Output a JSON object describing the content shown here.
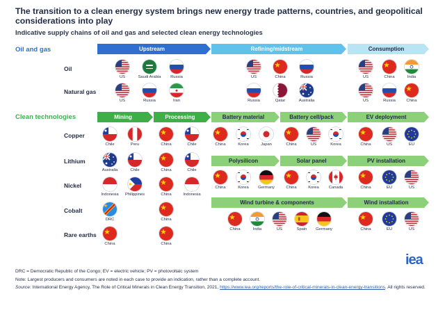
{
  "title": "The transition to a clean energy system brings new energy trade patterns, countries, and geopolitical considerations into play",
  "subtitle": "Indicative supply chains of oil and gas and selected clean energy technologies",
  "sections": {
    "oil_gas": "Oil and gas",
    "clean": "Clean technologies"
  },
  "stages": {
    "upstream": "Upstream",
    "refining": "Refining/midstream",
    "consumption": "Consumption",
    "mining": "Mining",
    "processing": "Processing",
    "battery_material": "Battery material",
    "battery_cell": "Battery cell/pack",
    "ev_deployment": "EV deployment",
    "polysilicon": "Polysilicon",
    "solar_panel": "Solar panel",
    "pv_installation": "PV installation",
    "wind_components": "Wind turbine & components",
    "wind_installation": "Wind installation"
  },
  "rows": {
    "oil": "Oil",
    "gas": "Natural gas",
    "copper": "Copper",
    "lithium": "Lithium",
    "nickel": "Nickel",
    "cobalt": "Cobalt",
    "rare": "Rare earths"
  },
  "countries": {
    "us": "US",
    "saudi": "Saudi Arabia",
    "russia": "Russia",
    "china": "China",
    "india": "India",
    "iran": "Iran",
    "qatar": "Qatar",
    "australia": "Australia",
    "chile": "Chile",
    "peru": "Peru",
    "korea": "Korea",
    "japan": "Japan",
    "eu": "EU",
    "germany": "Germany",
    "canada": "Canada",
    "indonesia": "Indonesia",
    "philippines": "Philippines",
    "drc": "DRC",
    "spain": "Spain"
  },
  "colors": {
    "upstream": "#2e6fd0",
    "refining": "#5fc2ea",
    "consumption": "#b9e4f3",
    "clean_dark": "#3fae49",
    "clean_light": "#8dd07a",
    "title_dark": "#1f2a44",
    "oil_gas_label": "#2e6fd0",
    "clean_label": "#3fae49"
  },
  "notes": {
    "line1": "DRC = Democratic Republic of the Congo; EV = electric vehicle; PV = photovoltaic system",
    "line2": "Note: Largest producers and consumers are noted in each case to provide an indication, rather than a complete account.",
    "source_label": "Source:",
    "source_text": " International Energy Agency, The Role of Critical Minerals in Clean Energy Transition, 2021, ",
    "source_link": "https://www.iea.org/reports/the-role-of-critical-minerals-in-clean-energy-transitions",
    "rights": ". All rights reserved."
  },
  "logo": "iea"
}
